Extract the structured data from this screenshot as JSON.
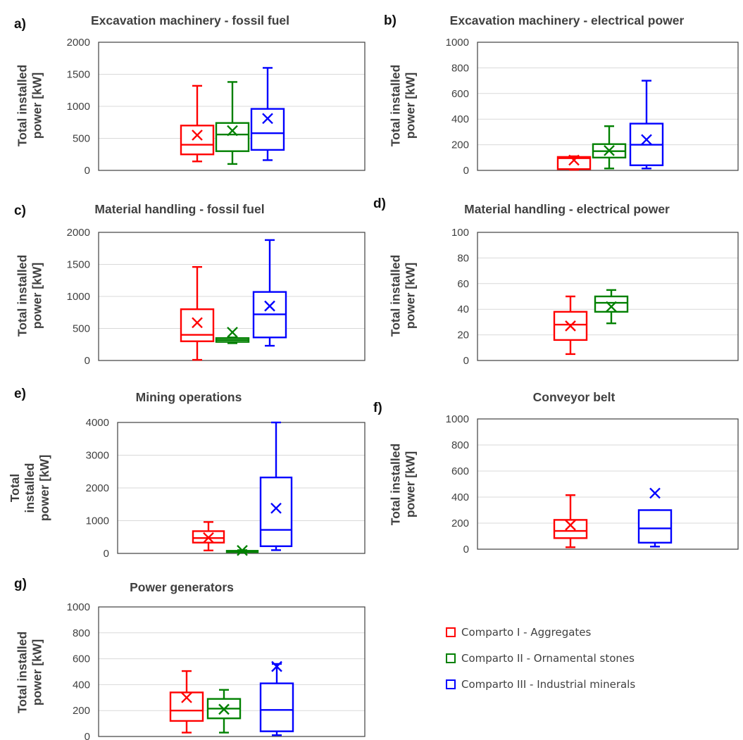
{
  "colors": {
    "comparto_1": "#ff0000",
    "comparto_2": "#008000",
    "comparto_3": "#0000ff",
    "axis_text": "#404040",
    "grid": "#d9d9d9",
    "frame": "#404040"
  },
  "legend": [
    {
      "label": "Comparto I - Aggregates",
      "color": "#ff0000"
    },
    {
      "label": "Comparto II - Ornamental stones",
      "color": "#008000"
    },
    {
      "label": "Comparto III - Industrial minerals",
      "color": "#0000ff"
    }
  ],
  "chart_data": [
    {
      "panel": "a)",
      "type": "box",
      "title": "Excavation machinery - fossil fuel",
      "ylabel": [
        "Total installed",
        "power [kW]"
      ],
      "ylim": [
        0,
        2000
      ],
      "ticks": [
        "0",
        "500",
        "1000",
        "1500",
        "2000"
      ],
      "series": [
        {
          "name": "Comparto I - Aggregates",
          "min": 140,
          "q1": 250,
          "median": 400,
          "q3": 700,
          "max": 1320,
          "mean": 550
        },
        {
          "name": "Comparto II - Ornamental stones",
          "min": 100,
          "q1": 300,
          "median": 560,
          "q3": 740,
          "max": 1380,
          "mean": 620
        },
        {
          "name": "Comparto III - Industrial minerals",
          "min": 160,
          "q1": 320,
          "median": 580,
          "q3": 960,
          "max": 1600,
          "mean": 810
        }
      ]
    },
    {
      "panel": "b)",
      "type": "box",
      "title": "Excavation machinery - electrical power",
      "ylabel": [
        "Total installed",
        "power [kW]"
      ],
      "ylim": [
        0,
        1000
      ],
      "ticks": [
        "0",
        "200",
        "400",
        "600",
        "800",
        "1000"
      ],
      "series": [
        {
          "name": "Comparto I - Aggregates",
          "min": 5,
          "q1": 10,
          "median": 95,
          "q3": 105,
          "max": 110,
          "mean": 80
        },
        {
          "name": "Comparto II - Ornamental stones",
          "min": 15,
          "q1": 100,
          "median": 150,
          "q3": 205,
          "max": 345,
          "mean": 155
        },
        {
          "name": "Comparto III - Industrial minerals",
          "min": 15,
          "q1": 40,
          "median": 200,
          "q3": 365,
          "max": 700,
          "mean": 240
        }
      ]
    },
    {
      "panel": "c)",
      "type": "box",
      "title": "Material handling - fossil fuel",
      "ylabel": [
        "Total installed",
        "power [kW]"
      ],
      "ylim": [
        0,
        2000
      ],
      "ticks": [
        "0",
        "500",
        "1000",
        "1500",
        "2000"
      ],
      "series": [
        {
          "name": "Comparto I - Aggregates",
          "min": 10,
          "q1": 300,
          "median": 400,
          "q3": 800,
          "max": 1460,
          "mean": 590
        },
        {
          "name": "Comparto II - Ornamental stones",
          "min": 270,
          "q1": 290,
          "median": 320,
          "q3": 350,
          "max": 360,
          "mean": 440
        },
        {
          "name": "Comparto III - Industrial minerals",
          "min": 230,
          "q1": 360,
          "median": 720,
          "q3": 1070,
          "max": 1880,
          "mean": 850
        }
      ]
    },
    {
      "panel": "d)",
      "type": "box",
      "title": "Material handling - electrical power",
      "ylabel": [
        "Total installed",
        "power [kW]"
      ],
      "ylim": [
        0,
        100
      ],
      "ticks": [
        "0",
        "20",
        "40",
        "60",
        "80",
        "100"
      ],
      "series": [
        {
          "name": "Comparto I - Aggregates",
          "min": 5,
          "q1": 16,
          "median": 28,
          "q3": 38,
          "max": 50,
          "mean": 27
        },
        {
          "name": "Comparto II - Ornamental stones",
          "min": 29,
          "q1": 38,
          "median": 45,
          "q3": 50,
          "max": 55,
          "mean": 42
        }
      ]
    },
    {
      "panel": "e)",
      "type": "box",
      "title": "Mining operations",
      "ylabel": [
        "Total",
        "installed",
        "power [kW]"
      ],
      "ylim": [
        0,
        4000
      ],
      "ticks": [
        "0",
        "1000",
        "2000",
        "3000",
        "4000"
      ],
      "series": [
        {
          "name": "Comparto I - Aggregates",
          "min": 90,
          "q1": 330,
          "median": 470,
          "q3": 680,
          "max": 960,
          "mean": 480
        },
        {
          "name": "Comparto II - Ornamental stones",
          "min": 30,
          "q1": 40,
          "median": 60,
          "q3": 80,
          "max": 100,
          "mean": 90
        },
        {
          "name": "Comparto III - Industrial minerals",
          "min": 100,
          "q1": 220,
          "median": 720,
          "q3": 2320,
          "max": 4000,
          "mean": 1380
        }
      ]
    },
    {
      "panel": "f)",
      "type": "box",
      "title": "Conveyor belt",
      "ylabel": [
        "Total installed",
        "power [kW]"
      ],
      "ylim": [
        0,
        1000
      ],
      "ticks": [
        "0",
        "200",
        "400",
        "600",
        "800",
        "1000"
      ],
      "series": [
        {
          "name": "Comparto I - Aggregates",
          "min": 15,
          "q1": 85,
          "median": 140,
          "q3": 225,
          "max": 415,
          "mean": 185
        },
        {
          "name": "Comparto III - Industrial minerals",
          "min": 20,
          "q1": 50,
          "median": 160,
          "q3": 300,
          "max": 300,
          "mean": 430
        }
      ]
    },
    {
      "panel": "g)",
      "type": "box",
      "title": "Power generators",
      "ylabel": [
        "Total installed",
        "power [kW]"
      ],
      "ylim": [
        0,
        1000
      ],
      "ticks": [
        "0",
        "200",
        "400",
        "600",
        "800",
        "1000"
      ],
      "series": [
        {
          "name": "Comparto I - Aggregates",
          "min": 30,
          "q1": 120,
          "median": 200,
          "q3": 340,
          "max": 505,
          "mean": 300
        },
        {
          "name": "Comparto II - Ornamental stones",
          "min": 30,
          "q1": 140,
          "median": 215,
          "q3": 290,
          "max": 360,
          "mean": 210
        },
        {
          "name": "Comparto III - Industrial minerals",
          "min": 10,
          "q1": 40,
          "median": 205,
          "q3": 410,
          "max": 560,
          "mean": 540
        }
      ]
    }
  ]
}
